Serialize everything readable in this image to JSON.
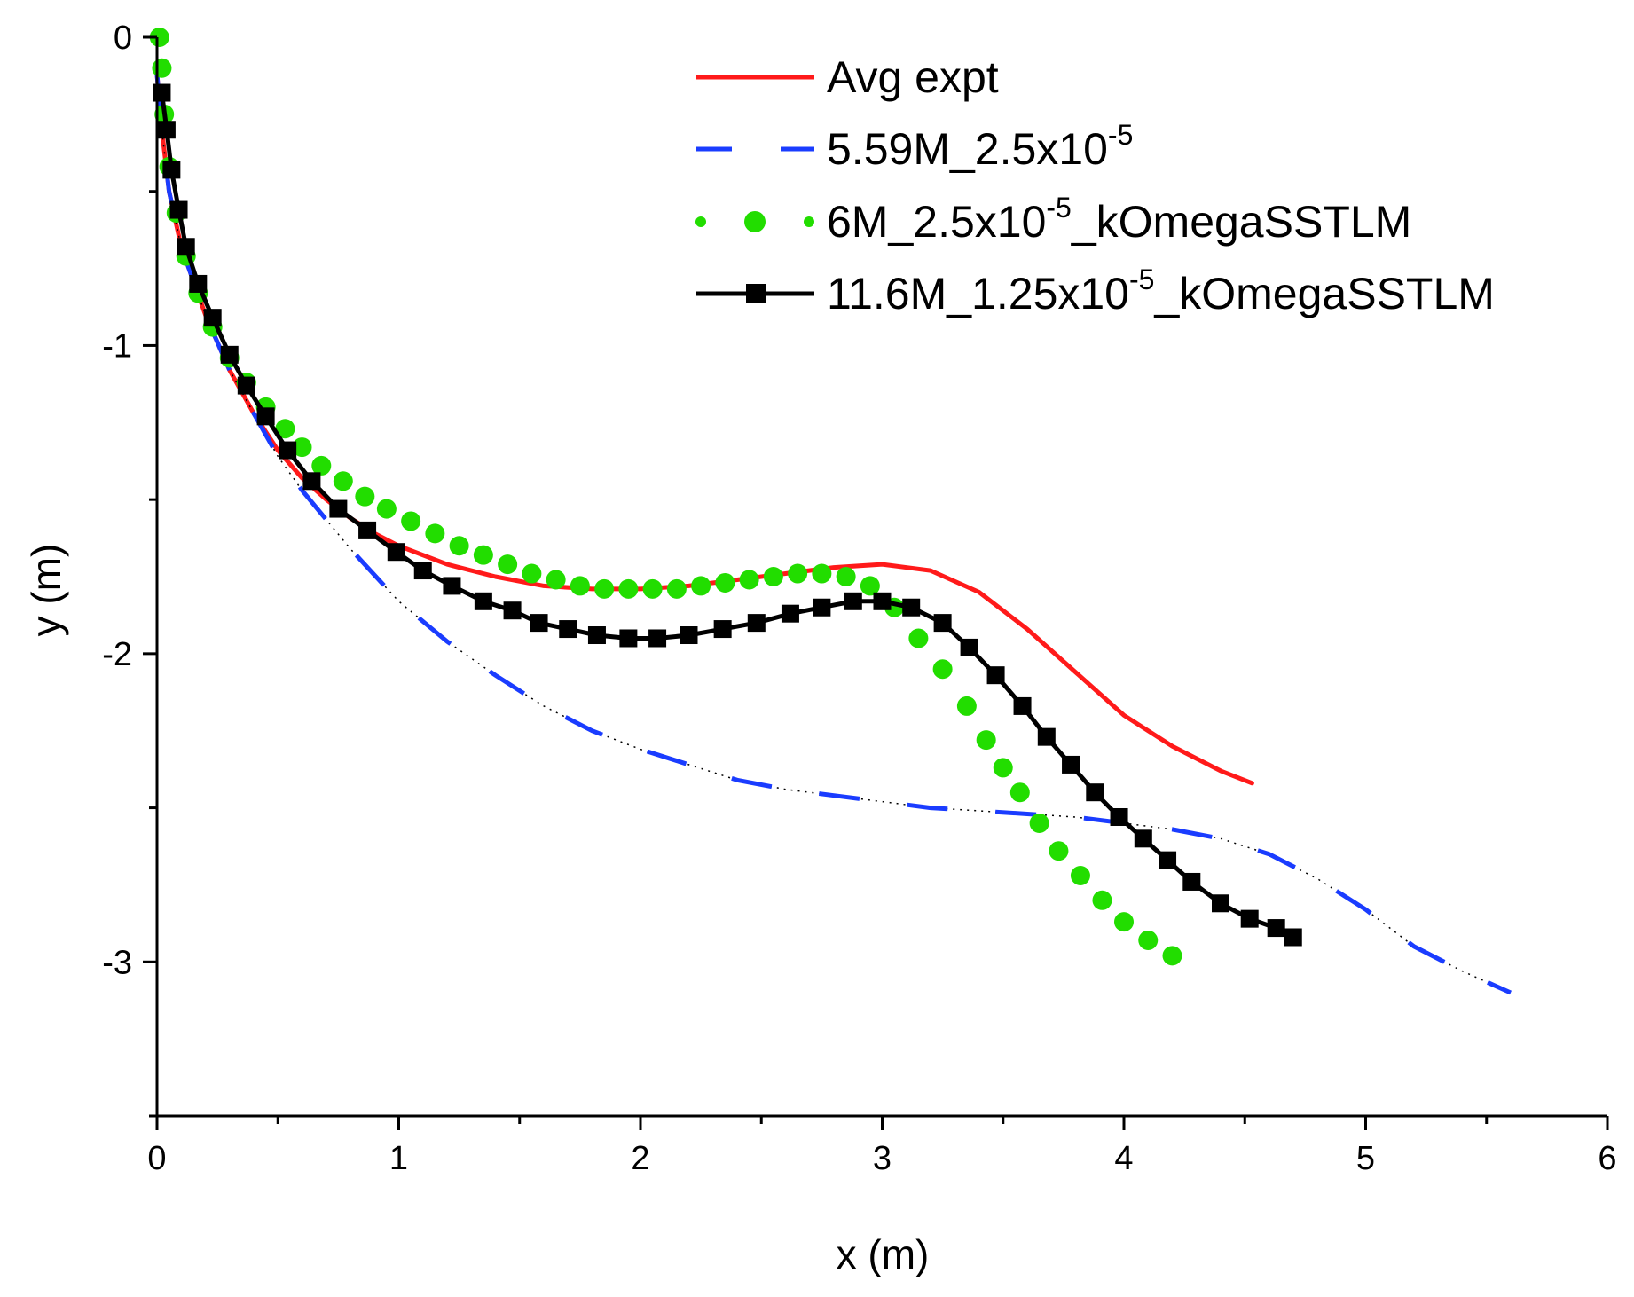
{
  "chart_data": {
    "type": "line",
    "title": "",
    "xlabel": "x (m)",
    "ylabel": "y (m)",
    "xlim": [
      0,
      6
    ],
    "ylim": [
      -3.5,
      0
    ],
    "xticks": [
      0,
      1,
      2,
      3,
      4,
      5,
      6
    ],
    "xtick_labels": [
      "0",
      "1",
      "2",
      "3",
      "4",
      "5",
      "6"
    ],
    "yticks": [
      0,
      -1,
      -2,
      -3
    ],
    "ytick_labels": [
      "0",
      "-1",
      "-2",
      "-3"
    ],
    "legend_position": "top-right",
    "series": [
      {
        "name": "Avg expt",
        "legend": {
          "base": "Avg expt",
          "exp": "",
          "suffix": ""
        },
        "color": "#ff1a1a",
        "style": "solid",
        "marker": "none",
        "x": [
          0.0,
          0.02,
          0.05,
          0.1,
          0.2,
          0.3,
          0.4,
          0.5,
          0.6,
          0.7,
          0.8,
          0.9,
          1.0,
          1.2,
          1.4,
          1.6,
          1.8,
          2.0,
          2.2,
          2.4,
          2.6,
          2.8,
          3.0,
          3.2,
          3.4,
          3.6,
          3.8,
          4.0,
          4.2,
          4.4,
          4.53
        ],
        "y": [
          -0.12,
          -0.3,
          -0.5,
          -0.68,
          -0.9,
          -1.08,
          -1.22,
          -1.34,
          -1.43,
          -1.5,
          -1.56,
          -1.61,
          -1.65,
          -1.71,
          -1.75,
          -1.78,
          -1.79,
          -1.79,
          -1.78,
          -1.76,
          -1.74,
          -1.72,
          -1.71,
          -1.73,
          -1.8,
          -1.92,
          -2.06,
          -2.2,
          -2.3,
          -2.38,
          -2.42
        ]
      },
      {
        "name": "5.59M_2.5x10-5",
        "legend": {
          "base": "5.59M_2.5x10",
          "exp": "-5",
          "suffix": ""
        },
        "color": "#1a3cff",
        "style": "dashed",
        "marker": "none",
        "x": [
          0.0,
          0.02,
          0.05,
          0.1,
          0.2,
          0.3,
          0.4,
          0.5,
          0.6,
          0.8,
          1.0,
          1.2,
          1.4,
          1.6,
          1.8,
          2.0,
          2.2,
          2.4,
          2.6,
          2.8,
          3.0,
          3.2,
          3.4,
          3.6,
          3.8,
          4.0,
          4.2,
          4.4,
          4.6,
          4.8,
          5.0,
          5.2,
          5.4,
          5.6
        ],
        "y": [
          -0.12,
          -0.3,
          -0.5,
          -0.68,
          -0.9,
          -1.08,
          -1.22,
          -1.36,
          -1.47,
          -1.66,
          -1.83,
          -1.96,
          -2.07,
          -2.17,
          -2.25,
          -2.31,
          -2.36,
          -2.41,
          -2.44,
          -2.46,
          -2.48,
          -2.5,
          -2.51,
          -2.52,
          -2.53,
          -2.55,
          -2.57,
          -2.6,
          -2.65,
          -2.73,
          -2.83,
          -2.95,
          -3.03,
          -3.1
        ]
      },
      {
        "name": "6M_2.5x10-5_kOmegaSSTLM",
        "legend": {
          "base": "6M_2.5x10",
          "exp": "-5",
          "suffix": "_kOmegaSSTLM"
        },
        "color": "#22dd00",
        "style": "dots",
        "marker": "circle",
        "x": [
          0.01,
          0.02,
          0.03,
          0.05,
          0.08,
          0.12,
          0.17,
          0.23,
          0.3,
          0.37,
          0.45,
          0.53,
          0.6,
          0.68,
          0.77,
          0.86,
          0.95,
          1.05,
          1.15,
          1.25,
          1.35,
          1.45,
          1.55,
          1.65,
          1.75,
          1.85,
          1.95,
          2.05,
          2.15,
          2.25,
          2.35,
          2.45,
          2.55,
          2.65,
          2.75,
          2.85,
          2.95,
          3.05,
          3.15,
          3.25,
          3.35,
          3.43,
          3.5,
          3.57,
          3.65,
          3.73,
          3.82,
          3.91,
          4.0,
          4.1,
          4.2
        ],
        "y": [
          0.0,
          -0.1,
          -0.25,
          -0.42,
          -0.57,
          -0.71,
          -0.83,
          -0.94,
          -1.04,
          -1.12,
          -1.2,
          -1.27,
          -1.33,
          -1.39,
          -1.44,
          -1.49,
          -1.53,
          -1.57,
          -1.61,
          -1.65,
          -1.68,
          -1.71,
          -1.74,
          -1.76,
          -1.78,
          -1.79,
          -1.79,
          -1.79,
          -1.79,
          -1.78,
          -1.77,
          -1.76,
          -1.75,
          -1.74,
          -1.74,
          -1.75,
          -1.78,
          -1.85,
          -1.95,
          -2.05,
          -2.17,
          -2.28,
          -2.37,
          -2.45,
          -2.55,
          -2.64,
          -2.72,
          -2.8,
          -2.87,
          -2.93,
          -2.98
        ]
      },
      {
        "name": "11.6M_1.25x10-5_kOmegaSSTLM",
        "legend": {
          "base": "11.6M_1.25x10",
          "exp": "-5",
          "suffix": "_kOmegaSSTLM"
        },
        "color": "#000000",
        "style": "solid",
        "marker": "square",
        "x": [
          0.02,
          0.04,
          0.06,
          0.09,
          0.12,
          0.17,
          0.23,
          0.3,
          0.37,
          0.45,
          0.54,
          0.64,
          0.75,
          0.87,
          0.99,
          1.1,
          1.22,
          1.35,
          1.47,
          1.58,
          1.7,
          1.82,
          1.95,
          2.07,
          2.2,
          2.34,
          2.48,
          2.62,
          2.75,
          2.88,
          3.0,
          3.12,
          3.25,
          3.36,
          3.47,
          3.58,
          3.68,
          3.78,
          3.88,
          3.98,
          4.08,
          4.18,
          4.28,
          4.4,
          4.52,
          4.63,
          4.7
        ],
        "y": [
          -0.18,
          -0.3,
          -0.43,
          -0.56,
          -0.68,
          -0.8,
          -0.91,
          -1.03,
          -1.13,
          -1.23,
          -1.34,
          -1.44,
          -1.53,
          -1.6,
          -1.67,
          -1.73,
          -1.78,
          -1.83,
          -1.86,
          -1.9,
          -1.92,
          -1.94,
          -1.95,
          -1.95,
          -1.94,
          -1.92,
          -1.9,
          -1.87,
          -1.85,
          -1.83,
          -1.83,
          -1.85,
          -1.9,
          -1.98,
          -2.07,
          -2.17,
          -2.27,
          -2.36,
          -2.45,
          -2.53,
          -2.6,
          -2.67,
          -2.74,
          -2.81,
          -2.86,
          -2.89,
          -2.92
        ]
      }
    ]
  }
}
